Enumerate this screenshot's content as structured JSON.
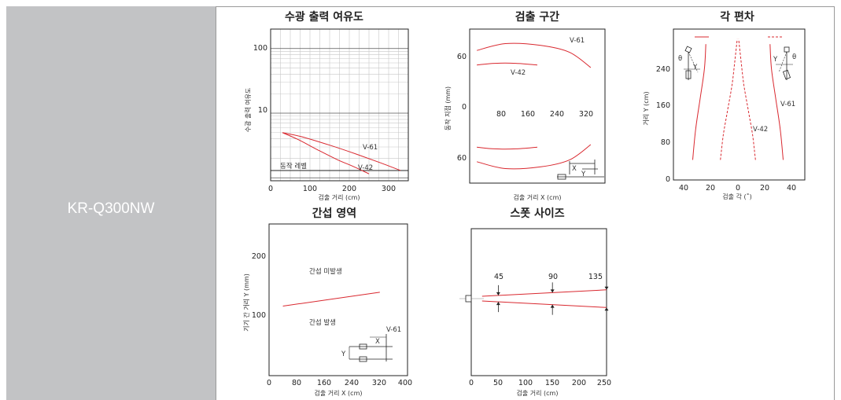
{
  "model_name": "KR-Q300NW",
  "colors": {
    "curve": "#d9282f",
    "grid": "#c8c8c8",
    "frame": "#222222",
    "left_cell": "#c2c3c5"
  },
  "chart_data": [
    {
      "id": "margin",
      "type": "line",
      "title": "수광 출력 여유도",
      "xlabel": "검출 거리 (cm)",
      "ylabel": "수광 출력 여유도",
      "x_ticks": [
        "0",
        "100",
        "200",
        "300"
      ],
      "y_ticks": [
        "100",
        "10"
      ],
      "y_scale": "log",
      "xlim": [
        0,
        350
      ],
      "ylim": [
        0.9,
        200
      ],
      "threshold_label": "동작 레벨",
      "threshold_value": 1,
      "series": [
        {
          "name": "V-61",
          "x": [
            30,
            80,
            150,
            220,
            280,
            330
          ],
          "y": [
            5,
            4.3,
            3.2,
            2.3,
            1.7,
            1.3
          ]
        },
        {
          "name": "V-42",
          "x": [
            30,
            70,
            120,
            170,
            210,
            250
          ],
          "y": [
            5,
            3.9,
            2.7,
            1.9,
            1.5,
            1.15
          ]
        }
      ]
    },
    {
      "id": "zone",
      "type": "line",
      "title": "검출 구간",
      "xlabel": "검출 거리 X (cm)",
      "ylabel": "동작 지점 (mm)",
      "y_ticks": [
        "60",
        "0",
        "60"
      ],
      "x_inner_ticks": [
        "80",
        "160",
        "240",
        "320"
      ],
      "xlim": [
        0,
        380
      ],
      "ylim": [
        -90,
        90
      ],
      "series": [
        {
          "name": "V-61",
          "x": [
            20,
            100,
            200,
            280,
            340
          ],
          "y": [
            65,
            73,
            71,
            63,
            45
          ],
          "mirror": true
        },
        {
          "name": "V-42",
          "x": [
            20,
            70,
            130,
            190
          ],
          "y": [
            48,
            50,
            50,
            48
          ],
          "mirror": true
        }
      ],
      "diagram_labels": [
        "X",
        "Y"
      ]
    },
    {
      "id": "angle",
      "type": "line",
      "title": "각 편차",
      "xlabel": "검출 각 (˚)",
      "ylabel": "거리 Y (cm)",
      "x_ticks": [
        "40",
        "20",
        "0",
        "20",
        "40"
      ],
      "y_ticks": [
        "240",
        "160",
        "80",
        "0"
      ],
      "xlim": [
        -45,
        45
      ],
      "ylim": [
        0,
        300
      ],
      "series": [
        {
          "name": "V-61",
          "x": [
            31,
            29,
            26,
            23,
            22
          ],
          "y": [
            40,
            100,
            160,
            220,
            270
          ],
          "mirror": true
        },
        {
          "name": "V-42",
          "x": [
            12,
            10,
            7,
            4,
            2,
            0.5
          ],
          "y": [
            40,
            90,
            140,
            190,
            240,
            280
          ],
          "mirror": true,
          "dashed": true
        }
      ],
      "diagram_labels": [
        "θ",
        "Y",
        "Y",
        "θ"
      ]
    },
    {
      "id": "interference",
      "type": "line",
      "title": "간섭 영역",
      "xlabel": "검출 거리 X (cm)",
      "ylabel": "기기 간 거리 Y (mm)",
      "x_ticks": [
        "0",
        "80",
        "160",
        "240",
        "320",
        "400"
      ],
      "y_ticks": [
        "200",
        "100"
      ],
      "xlim": [
        0,
        400
      ],
      "ylim": [
        0,
        240
      ],
      "region_labels": [
        "간섭 미발생",
        "간섭 발생"
      ],
      "series": [
        {
          "name": "V-61",
          "x": [
            40,
            320
          ],
          "y": [
            110,
            132
          ]
        }
      ],
      "diagram_labels": [
        "X",
        "Y"
      ]
    },
    {
      "id": "spot",
      "type": "line",
      "title": "스폿 사이즈",
      "xlabel": "검출 거리 (cm)",
      "x_ticks": [
        "0",
        "50",
        "100",
        "150",
        "200",
        "250"
      ],
      "xlim": [
        0,
        250
      ],
      "spot_sizes": [
        "45",
        "90",
        "135"
      ],
      "spot_x": [
        50,
        150,
        250
      ],
      "series": [
        {
          "name": "upper",
          "x": [
            20,
            250
          ],
          "y": [
            4,
            15
          ]
        },
        {
          "name": "lower",
          "x": [
            20,
            250
          ],
          "y": [
            -4,
            -15
          ]
        }
      ]
    }
  ]
}
